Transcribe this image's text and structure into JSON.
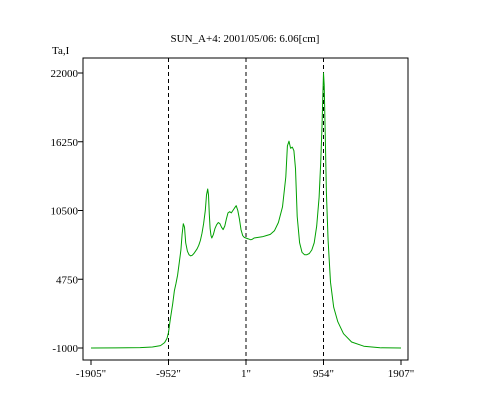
{
  "chart_data": {
    "type": "line",
    "title": "SUN_A+4: 2001/05/06: 6.06[cm]",
    "ylabel": "Ta,I",
    "xlabel": "",
    "xlim": [
      -1905,
      1907
    ],
    "ylim": [
      -1000,
      22000
    ],
    "x_ticks": [
      {
        "value": -1905,
        "label": "-1905\""
      },
      {
        "value": -952,
        "label": "-952\""
      },
      {
        "value": 1,
        "label": "1\""
      },
      {
        "value": 954,
        "label": "954\""
      },
      {
        "value": 1907,
        "label": "1907\""
      }
    ],
    "y_ticks": [
      {
        "value": -1000,
        "label": "-1000"
      },
      {
        "value": 4750,
        "label": "4750"
      },
      {
        "value": 10500,
        "label": "10500"
      },
      {
        "value": 16250,
        "label": "16250"
      },
      {
        "value": 22000,
        "label": "22000"
      }
    ],
    "vertical_markers": [
      -952,
      1,
      954
    ],
    "grid": false,
    "series": [
      {
        "color": "#00a000",
        "x": [
          -1905,
          -1600,
          -1300,
          -1150,
          -1050,
          -1000,
          -970,
          -952,
          -930,
          -900,
          -880,
          -860,
          -840,
          -820,
          -800,
          -785,
          -770,
          -755,
          -740,
          -720,
          -700,
          -680,
          -660,
          -640,
          -620,
          -600,
          -580,
          -560,
          -540,
          -520,
          -500,
          -485,
          -470,
          -460,
          -450,
          -440,
          -430,
          -420,
          -400,
          -380,
          -360,
          -340,
          -320,
          -300,
          -280,
          -260,
          -240,
          -220,
          -200,
          -180,
          -160,
          -140,
          -120,
          -100,
          -80,
          -60,
          -40,
          -20,
          0,
          20,
          40,
          60,
          80,
          100,
          150,
          200,
          250,
          300,
          350,
          400,
          450,
          490,
          510,
          530,
          550,
          570,
          590,
          610,
          630,
          660,
          690,
          720,
          750,
          780,
          810,
          840,
          870,
          900,
          920,
          935,
          945,
          954,
          962,
          975,
          990,
          1010,
          1040,
          1080,
          1130,
          1200,
          1300,
          1450,
          1650,
          1907
        ],
        "y": [
          -1000,
          -990,
          -970,
          -920,
          -800,
          -550,
          -200,
          300,
          1400,
          2700,
          3800,
          4400,
          5100,
          6100,
          7200,
          8500,
          9400,
          9100,
          7800,
          7100,
          6800,
          6700,
          6750,
          6900,
          7100,
          7300,
          7600,
          8000,
          8600,
          9400,
          10500,
          11800,
          12300,
          11800,
          10200,
          9000,
          8400,
          8200,
          8500,
          9000,
          9300,
          9500,
          9400,
          9100,
          8900,
          9200,
          9800,
          10300,
          10400,
          10300,
          10500,
          10700,
          10900,
          10500,
          9800,
          8900,
          8400,
          8250,
          8200,
          8150,
          8100,
          8050,
          8100,
          8200,
          8250,
          8300,
          8400,
          8500,
          8800,
          9500,
          10800,
          13300,
          15900,
          16300,
          15700,
          15800,
          15500,
          14000,
          10000,
          7800,
          7000,
          6800,
          6800,
          6900,
          7200,
          7800,
          9200,
          11600,
          14500,
          17500,
          20000,
          22000,
          21000,
          17000,
          12000,
          8000,
          4500,
          2400,
          1200,
          200,
          -500,
          -850,
          -980,
          -1000
        ]
      }
    ]
  }
}
